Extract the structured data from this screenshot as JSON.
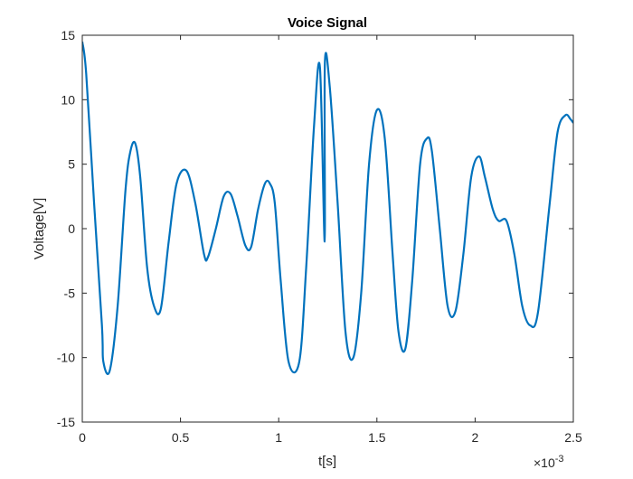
{
  "chart_data": {
    "type": "line",
    "title": "Voice Signal",
    "xlabel": "t[s]",
    "ylabel": "Voltage[V]",
    "x_scale_note": "×10",
    "x_scale_exponent": "-3",
    "xlim": [
      0,
      0.0025
    ],
    "ylim": [
      -15,
      15
    ],
    "grid": false,
    "line_color": "#0072BD",
    "x_ticks": [
      0,
      0.0005,
      0.001,
      0.0015,
      0.002,
      0.0025
    ],
    "x_tick_labels": [
      "0",
      "0.5",
      "1",
      "1.5",
      "2",
      "2.5"
    ],
    "y_ticks": [
      -15,
      -10,
      -5,
      0,
      5,
      10,
      15
    ],
    "y_tick_labels": [
      "-15",
      "-10",
      "-5",
      "0",
      "5",
      "10",
      "15"
    ],
    "series": [
      {
        "x": [
          0,
          2e-05,
          6e-05,
          0.0001,
          0.00014,
          0.00018,
          0.00022,
          0.000245,
          0.00027,
          0.000295,
          0.00033,
          0.000365,
          0.0004,
          0.00044,
          0.00048,
          0.00053,
          0.000575,
          0.00062,
          0.00064,
          0.00068,
          0.00072,
          0.000755,
          0.00079,
          0.00083,
          0.00086,
          0.000895,
          0.00093,
          0.000955,
          0.00098,
          0.00101,
          0.00105,
          0.000107,
          0.001105,
          0.00114,
          0.00118,
          0.00121,
          0.001235,
          0.00126,
          0.0013,
          0.00134,
          0.00138,
          0.00142,
          0.00146,
          0.0015,
          0.00154,
          0.00158,
          0.00161,
          0.001645,
          0.00168,
          0.00172,
          0.001755,
          0.00178,
          0.00182,
          0.00186,
          0.0019,
          0.00194,
          0.00198,
          0.00202,
          0.00205,
          0.00209,
          0.00212,
          0.00216,
          0.0022,
          0.00224,
          0.00228,
          0.00232,
          0.001234,
          0.00238,
          0.00242,
          0.00246,
          0.002485,
          0.0025
        ],
        "y": [
          14.5,
          12,
          2,
          -7.5,
          -11,
          -6,
          3,
          6,
          6.6,
          4,
          -3,
          -6,
          -6.2,
          -1,
          3.5,
          4.5,
          2,
          -2,
          -2.2,
          0,
          2.5,
          2.7,
          1,
          -1.3,
          -1.4,
          1.5,
          3.5,
          3.5,
          2,
          -4,
          -10.3,
          -10.3,
          -10.3,
          -3,
          8,
          12.5,
          12.8,
          11,
          2,
          -8,
          -10,
          -5,
          5,
          9.2,
          7,
          -2,
          -8,
          -9.3,
          -4,
          5,
          7,
          6,
          0,
          -6,
          -6.4,
          -2,
          4,
          5.6,
          4,
          1.5,
          0.6,
          0.6,
          -2,
          -6,
          -7.5,
          -6.5,
          -1,
          2,
          7.5,
          8.8,
          8.5,
          8.2
        ]
      }
    ]
  }
}
